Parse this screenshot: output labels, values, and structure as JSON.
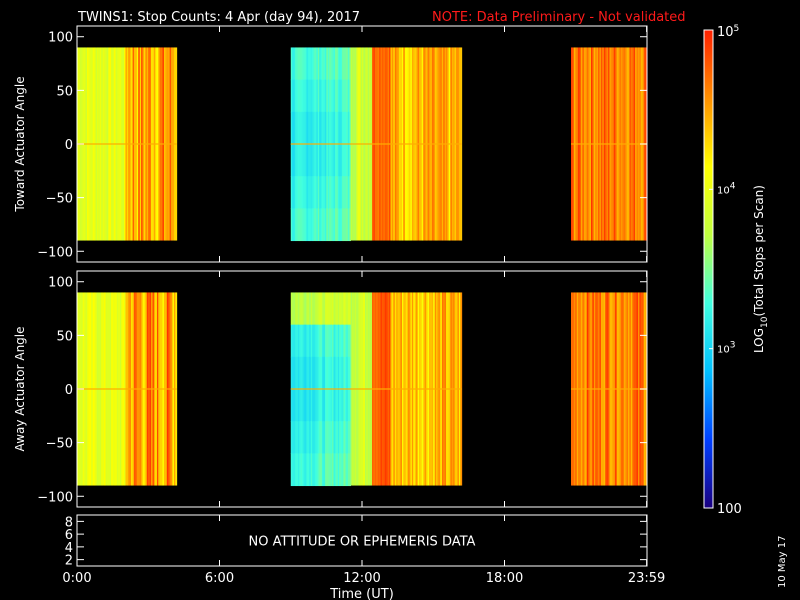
{
  "title": "TWINS1: Stop Counts:  4 Apr (day  94), 2017",
  "note": "NOTE: Data Preliminary - Not validated",
  "stamp": "10 May 17",
  "chart_data": [
    {
      "type": "heatmap",
      "ylabel": "Toward Actuator Angle",
      "ylim": [
        -110,
        110
      ],
      "yticks": [
        "100",
        "50",
        "0",
        "−50",
        "−100"
      ],
      "ytick_values": [
        100,
        50,
        0,
        -50,
        -100
      ],
      "data_angle_range": [
        -90,
        90
      ],
      "data_segments_hours": [
        [
          0,
          4.2
        ],
        [
          9.0,
          16.2
        ],
        [
          20.8,
          24
        ]
      ]
    },
    {
      "type": "heatmap",
      "ylabel": "Away Actuator Angle",
      "ylim": [
        -110,
        110
      ],
      "yticks": [
        "100",
        "50",
        "0",
        "−50",
        "−100"
      ],
      "ytick_values": [
        100,
        50,
        0,
        -50,
        -100
      ],
      "data_angle_range": [
        -90,
        90
      ],
      "data_segments_hours": [
        [
          0,
          4.2
        ],
        [
          9.0,
          16.2
        ],
        [
          20.8,
          24
        ]
      ]
    },
    {
      "type": "table",
      "message": "NO ATTITUDE OR EPHEMERIS DATA",
      "yticks": [
        "8",
        "6",
        "4",
        "2"
      ],
      "ytick_values": [
        8,
        6,
        4,
        2
      ],
      "ylim": [
        1,
        9
      ]
    }
  ],
  "xaxis": {
    "label": "Time (UT)",
    "range_hours": [
      0,
      24
    ],
    "ticks": [
      {
        "label": "0:00",
        "hour": 0
      },
      {
        "label": "6:00",
        "hour": 6
      },
      {
        "label": "12:00",
        "hour": 12
      },
      {
        "label": "18:00",
        "hour": 18
      },
      {
        "label": "23:59",
        "hour": 23.983
      }
    ]
  },
  "colorbar": {
    "label": "LOG10(Total Stops per Scan)",
    "top_label": "10^5",
    "mid_label": "10^4",
    "low_label": "10^3",
    "bottom_label": "100",
    "range_log": [
      2,
      5
    ],
    "colors": [
      "#1a0080",
      "#0040ff",
      "#00c0ff",
      "#40ffe0",
      "#c0ff40",
      "#ffff00",
      "#ff9000",
      "#ff2000"
    ]
  }
}
